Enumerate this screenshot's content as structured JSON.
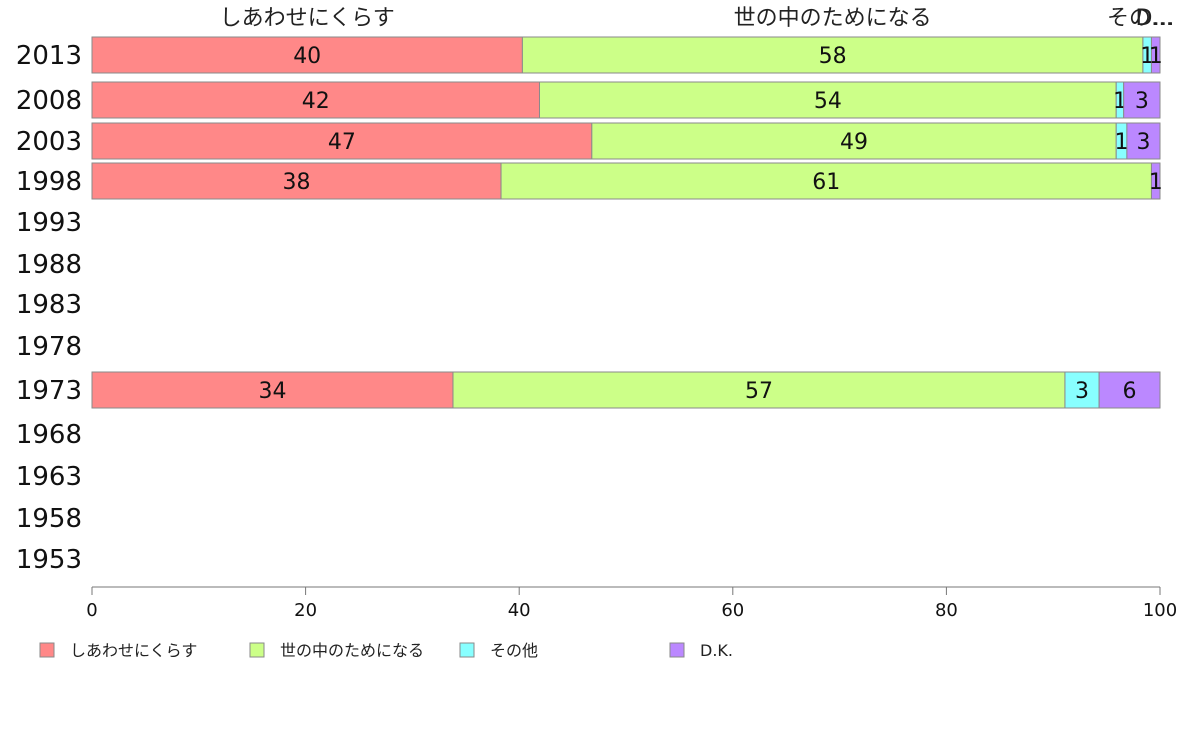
{
  "chart_data": {
    "type": "bar",
    "orientation": "horizontal",
    "stacked": true,
    "categories": [
      "2013",
      "2008",
      "2003",
      "1998",
      "1993",
      "1988",
      "1983",
      "1978",
      "1973",
      "1968",
      "1963",
      "1958",
      "1953"
    ],
    "series": [
      {
        "name": "しあわせにくらす",
        "color": "#ff8888",
        "values": [
          40.3,
          41.9,
          46.8,
          38.3,
          null,
          null,
          null,
          null,
          33.8,
          null,
          null,
          null,
          null
        ],
        "labels": [
          "40",
          "42",
          "47",
          "38",
          "",
          "",
          "",
          "",
          "34",
          "",
          "",
          "",
          ""
        ]
      },
      {
        "name": "世の中のためになる",
        "color": "#ccff88",
        "values": [
          58.1,
          54.0,
          49.1,
          60.9,
          null,
          null,
          null,
          null,
          57.3,
          null,
          null,
          null,
          null
        ],
        "labels": [
          "58",
          "54",
          "49",
          "61",
          "",
          "",
          "",
          "",
          "57",
          "",
          "",
          "",
          ""
        ]
      },
      {
        "name": "その他",
        "color": "#88ffff",
        "values": [
          0.8,
          0.7,
          1.0,
          0.0,
          null,
          null,
          null,
          null,
          3.2,
          null,
          null,
          null,
          null
        ],
        "labels": [
          "1",
          "1",
          "1",
          "",
          "",
          "",
          "",
          "",
          "3",
          "",
          "",
          "",
          ""
        ]
      },
      {
        "name": "D.K.",
        "color": "#bb88ff",
        "values": [
          0.8,
          3.4,
          3.1,
          0.8,
          null,
          null,
          null,
          null,
          5.7,
          null,
          null,
          null,
          null
        ],
        "labels": [
          "1",
          "3",
          "3",
          "1",
          "",
          "",
          "",
          "",
          "6",
          "",
          "",
          "",
          ""
        ]
      }
    ],
    "top_labels": [
      "しあわせにくらす",
      "世の中のためになる",
      "その…",
      "D…"
    ],
    "xlim": [
      0,
      100
    ],
    "xticks": [
      "0",
      "20",
      "40",
      "60",
      "80",
      "100"
    ],
    "xlabel": "",
    "ylabel": "",
    "title": "",
    "grid": false,
    "legend_position": "bottom"
  }
}
